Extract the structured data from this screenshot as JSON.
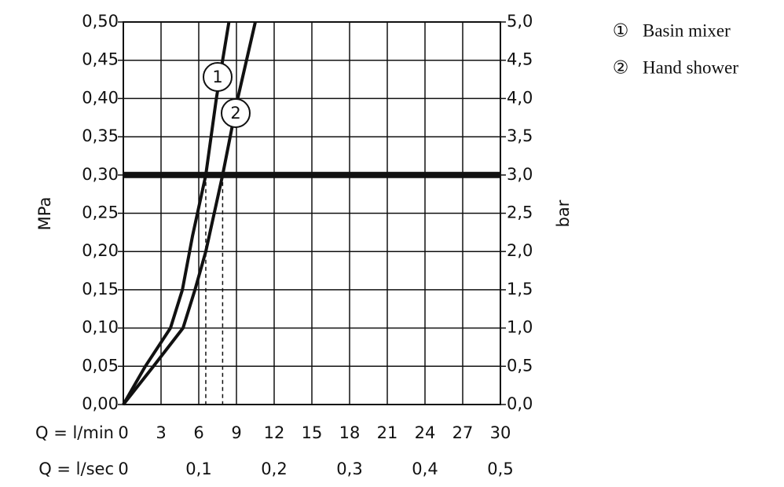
{
  "chart_data": {
    "type": "line",
    "x_label": "Q = l/min",
    "x2_label": "Q = l/sec",
    "y_label": "MPa",
    "y2_label": "bar",
    "xlim": [
      0,
      30
    ],
    "xticks": [
      0,
      3,
      6,
      9,
      12,
      15,
      18,
      21,
      24,
      27,
      30
    ],
    "x2lim": [
      0,
      0.5
    ],
    "x2ticks": [
      0,
      {
        "value": 0.1,
        "label": "0,1"
      },
      {
        "value": 0.2,
        "label": "0,2"
      },
      {
        "value": 0.3,
        "label": "0,3"
      },
      {
        "value": 0.4,
        "label": "0,4"
      },
      {
        "value": 0.5,
        "label": "0,5"
      }
    ],
    "ylim": [
      0,
      0.5
    ],
    "yticks": [
      {
        "value": 0,
        "label": "0,00"
      },
      {
        "value": 0.05,
        "label": "0,05"
      },
      {
        "value": 0.1,
        "label": "0,10"
      },
      {
        "value": 0.15,
        "label": "0,15"
      },
      {
        "value": 0.2,
        "label": "0,20"
      },
      {
        "value": 0.25,
        "label": "0,25"
      },
      {
        "value": 0.3,
        "label": "0,30"
      },
      {
        "value": 0.35,
        "label": "0,35"
      },
      {
        "value": 0.4,
        "label": "0,40"
      },
      {
        "value": 0.45,
        "label": "0,45"
      },
      {
        "value": 0.5,
        "label": "0,50"
      }
    ],
    "y2lim": [
      0,
      5
    ],
    "y2ticks": [
      {
        "value": 0,
        "label": "0,0"
      },
      {
        "value": 0.5,
        "label": "0,5"
      },
      {
        "value": 1,
        "label": "1,0"
      },
      {
        "value": 1.5,
        "label": "1,5"
      },
      {
        "value": 2,
        "label": "2,0"
      },
      {
        "value": 2.5,
        "label": "2,5"
      },
      {
        "value": 3,
        "label": "3,0"
      },
      {
        "value": 3.5,
        "label": "3,5"
      },
      {
        "value": 4,
        "label": "4,0"
      },
      {
        "value": 4.5,
        "label": "4,5"
      },
      {
        "value": 5,
        "label": "5,0"
      }
    ],
    "grid": true,
    "reference_y": 0.3,
    "reference_x": [
      6.56,
      7.9
    ],
    "series": [
      {
        "name": "Basin mixer",
        "marker": "①",
        "label": "1",
        "color": "#111111",
        "x": [
          0,
          1.75,
          3.75,
          4.7,
          5.5,
          6.56,
          7.4,
          8.4
        ],
        "values": [
          0,
          0.05,
          0.1,
          0.15,
          0.22,
          0.3,
          0.4,
          0.5
        ]
      },
      {
        "name": "Hand shower",
        "marker": "②",
        "label": "2",
        "color": "#111111",
        "x": [
          0,
          2.4,
          4.75,
          5.7,
          6.56,
          7.9,
          9.1,
          10.5
        ],
        "values": [
          0,
          0.05,
          0.1,
          0.15,
          0.2,
          0.3,
          0.4,
          0.5
        ]
      }
    ]
  }
}
